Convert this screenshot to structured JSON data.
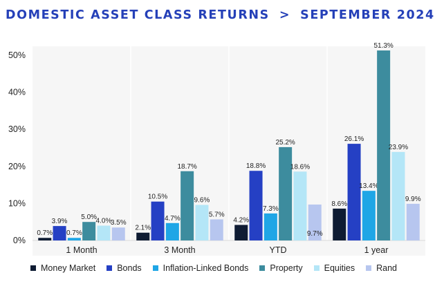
{
  "title": {
    "main": "DOMESTIC ASSET CLASS RETURNS",
    "separator": ">",
    "period": "SEPTEMBER 2024"
  },
  "chart_data": {
    "type": "bar",
    "categories": [
      "1 Month",
      "3 Month",
      "YTD",
      "1 year"
    ],
    "ylim": [
      0,
      50
    ],
    "yticks": [
      0,
      10,
      20,
      30,
      40,
      50
    ],
    "ytick_labels": [
      "0%",
      "10%",
      "20%",
      "30%",
      "40%",
      "50%"
    ],
    "grid": false,
    "legend_position": "bottom",
    "series": [
      {
        "name": "Money Market",
        "color": "#0f1c33",
        "values": [
          0.7,
          2.1,
          4.2,
          8.6
        ],
        "labels": [
          "0.7%",
          "2.1%",
          "4.2%",
          "8.6%"
        ]
      },
      {
        "name": "Bonds",
        "color": "#2540c4",
        "values": [
          3.9,
          10.5,
          18.8,
          26.1
        ],
        "labels": [
          "3.9%",
          "10.5%",
          "18.8%",
          "26.1%"
        ]
      },
      {
        "name": "Inflation-Linked Bonds",
        "color": "#1fa6e6",
        "values": [
          0.7,
          4.7,
          7.3,
          13.4
        ],
        "labels": [
          "0.7%",
          "4.7%",
          "7.3%",
          "13.4%"
        ]
      },
      {
        "name": "Property",
        "color": "#3d8c9e",
        "values": [
          5.0,
          18.7,
          25.2,
          51.3
        ],
        "labels": [
          "5.0%",
          "18.7%",
          "25.2%",
          "51.3%"
        ]
      },
      {
        "name": "Equities",
        "color": "#b4e6f7",
        "values": [
          4.0,
          9.6,
          18.6,
          23.9
        ],
        "labels": [
          "4.0%",
          "9.6%",
          "18.6%",
          "23.9%"
        ]
      },
      {
        "name": "Rand",
        "color": "#b7c6ef",
        "values": [
          3.5,
          5.7,
          9.7,
          9.9
        ],
        "labels": [
          "3.5%",
          "5.7%",
          "9.7%",
          "9.9%"
        ]
      }
    ]
  }
}
